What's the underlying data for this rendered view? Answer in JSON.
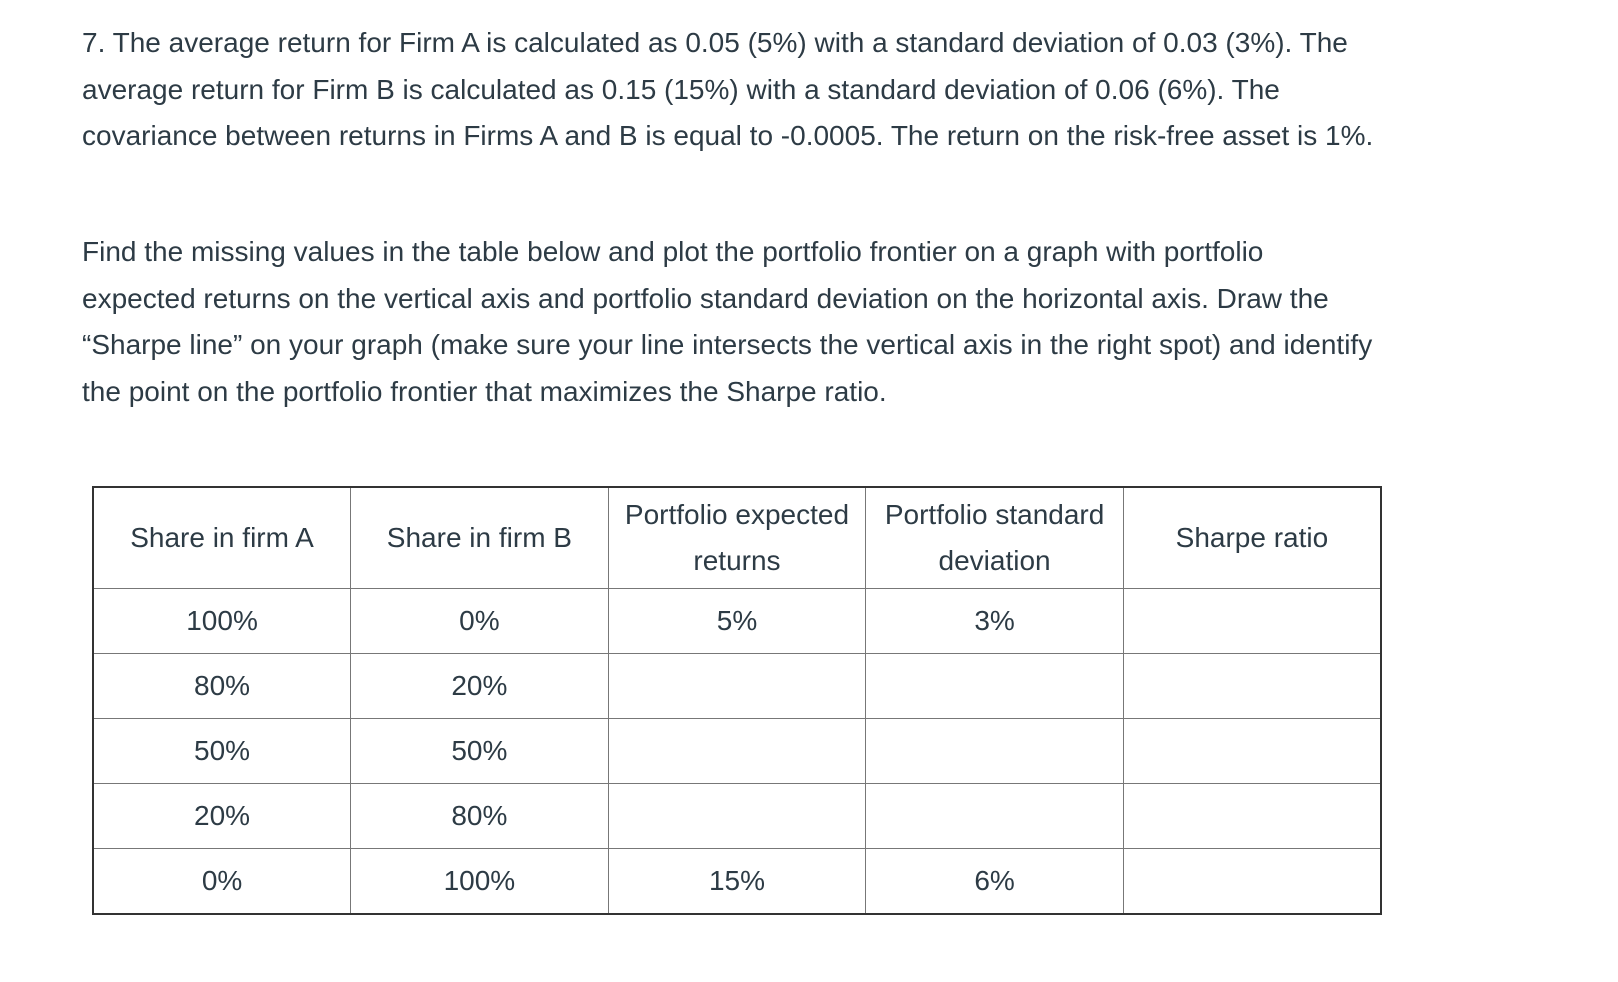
{
  "paragraphs": [
    "7. The average return for Firm A is calculated as 0.05 (5%) with a standard deviation of 0.03 (3%). The average return for Firm B is calculated as 0.15 (15%) with a standard deviation of 0.06 (6%). The covariance between returns in Firms A and B is equal to -0.0005. The return on the risk-free asset is 1%.",
    "Find the missing values in the table below and plot the portfolio frontier on a graph with portfolio expected returns on the vertical axis and portfolio standard deviation on the horizontal axis. Draw the “Sharpe line” on your graph (make sure your line intersects the vertical axis in the right spot) and identify the point on the portfolio frontier that maximizes the Sharpe ratio."
  ],
  "table": {
    "header": [
      "Share in firm A",
      "Share in firm B",
      "Portfolio expected returns",
      "Portfolio standard deviation",
      "Sharpe ratio"
    ],
    "rows": [
      [
        "100%",
        "0%",
        "5%",
        "3%",
        null
      ],
      [
        "80%",
        "20%",
        null,
        null,
        null
      ],
      [
        "50%",
        "50%",
        null,
        null,
        null
      ],
      [
        "20%",
        "80%",
        null,
        null,
        null
      ],
      [
        "0%",
        "100%",
        "15%",
        "6%",
        null
      ]
    ]
  }
}
